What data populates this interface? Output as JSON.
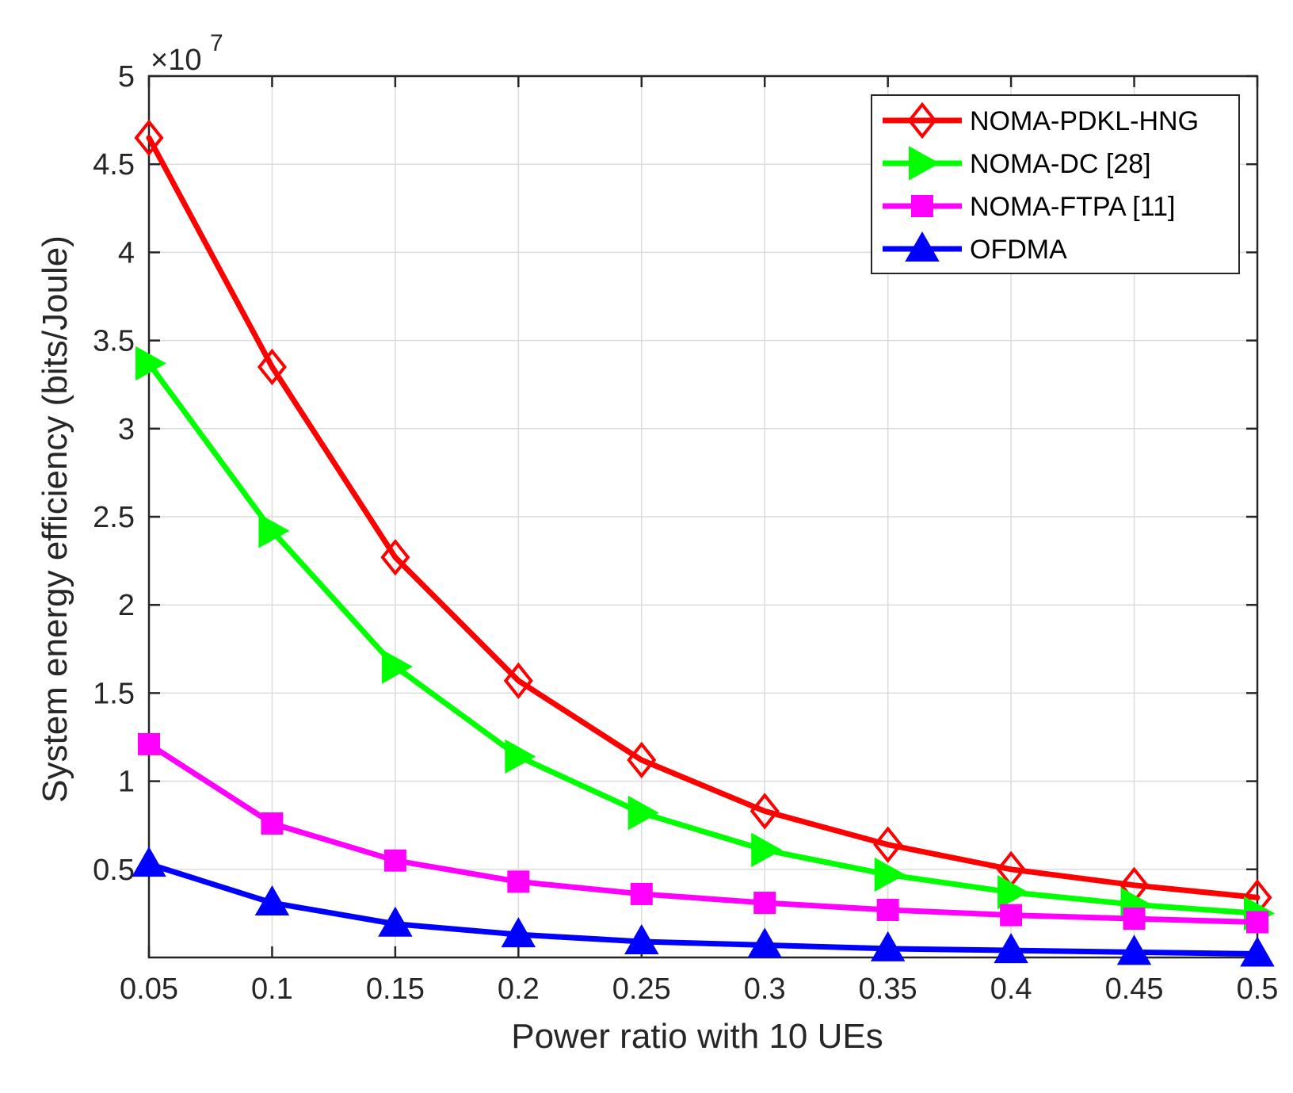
{
  "chart_data": {
    "type": "line",
    "title": "",
    "xlabel": "Power ratio with 10 UEs",
    "ylabel": "System energy efficiency (bits/Joule)",
    "y_exponent_label": "×10",
    "y_exponent_power": "7",
    "x": [
      0.05,
      0.1,
      0.15,
      0.2,
      0.25,
      0.3,
      0.35,
      0.4,
      0.45,
      0.5
    ],
    "x_tick_labels": [
      "0.05",
      "0.1",
      "0.15",
      "0.2",
      "0.25",
      "0.3",
      "0.35",
      "0.4",
      "0.45",
      "0.5"
    ],
    "y_ticks": [
      0.5,
      1,
      1.5,
      2,
      2.5,
      3,
      3.5,
      4,
      4.5,
      5
    ],
    "y_tick_labels": [
      "0.5",
      "1",
      "1.5",
      "2",
      "2.5",
      "3",
      "3.5",
      "4",
      "4.5",
      "5"
    ],
    "xlim": [
      0.05,
      0.5
    ],
    "ylim": [
      0,
      5
    ],
    "grid": true,
    "legend_position": "top-right",
    "series": [
      {
        "name": "NOMA-PDKL-HNG",
        "color": "#ff0000",
        "marker": "diamond",
        "values": [
          4.65,
          3.35,
          2.27,
          1.57,
          1.12,
          0.83,
          0.64,
          0.5,
          0.41,
          0.34
        ]
      },
      {
        "name": "NOMA-DC [28]",
        "color": "#00ff00",
        "marker": "triangle-right",
        "values": [
          3.37,
          2.42,
          1.65,
          1.14,
          0.82,
          0.61,
          0.47,
          0.37,
          0.3,
          0.25
        ]
      },
      {
        "name": "NOMA-FTPA [11]",
        "color": "#ff00ff",
        "marker": "square",
        "values": [
          1.21,
          0.76,
          0.55,
          0.43,
          0.36,
          0.31,
          0.27,
          0.24,
          0.22,
          0.2
        ]
      },
      {
        "name": "OFDMA",
        "color": "#0000ff",
        "marker": "triangle-up",
        "values": [
          0.53,
          0.31,
          0.19,
          0.13,
          0.09,
          0.07,
          0.05,
          0.04,
          0.03,
          0.02
        ]
      }
    ]
  }
}
